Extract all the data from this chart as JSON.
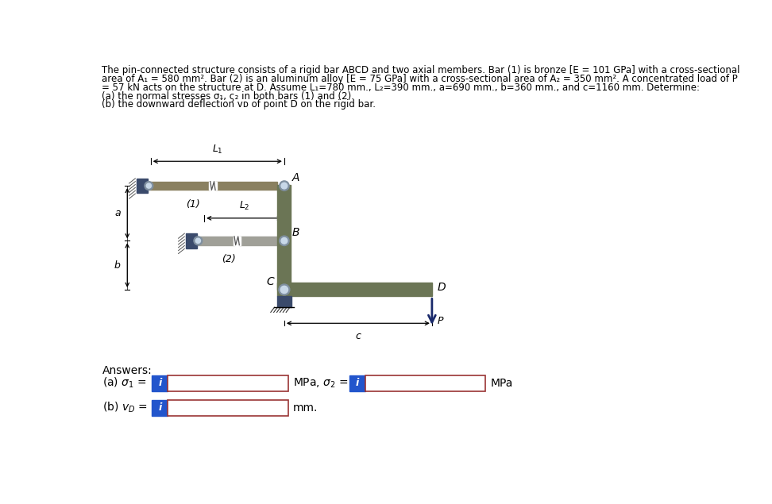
{
  "bg_color": "#ffffff",
  "bar_color": "#6b7555",
  "member1_color": "#8a8060",
  "member2_color": "#a0a098",
  "wall_bracket_color": "#3a4a6b",
  "pin_outer_color": "#8090a0",
  "pin_inner_color": "#c8d8e8",
  "pin_gold_color": "#c8b870",
  "support_color": "#3a4a6b",
  "text_color": "#000000",
  "dim_color": "#000000",
  "arrow_color": "#1a2a6b",
  "input_box_border": "#993333",
  "blue_btn_color": "#2255cc",
  "title_line1": "The pin-connected structure consists of a rigid bar ABCD and two axial members. Bar (1) is bronze [E = 101 GPa] with a cross-sectional",
  "title_line2": "area of A₁ = 580 mm². Bar (2) is an aluminum alloy [E = 75 GPa] with a cross-sectional area of A₂ = 350 mm². A concentrated load of P",
  "title_line3": "= 57 kN acts on the structure at D. Assume L₁=780 mm., L₂=390 mm., a=690 mm., b=360 mm., and c=1160 mm. Determine:",
  "title_line4": "(a) the normal stresses σ₁, ς₂ in both bars (1) and (2).",
  "title_line5": "(b) the downward deflection vᴅ of point D on the rigid bar."
}
